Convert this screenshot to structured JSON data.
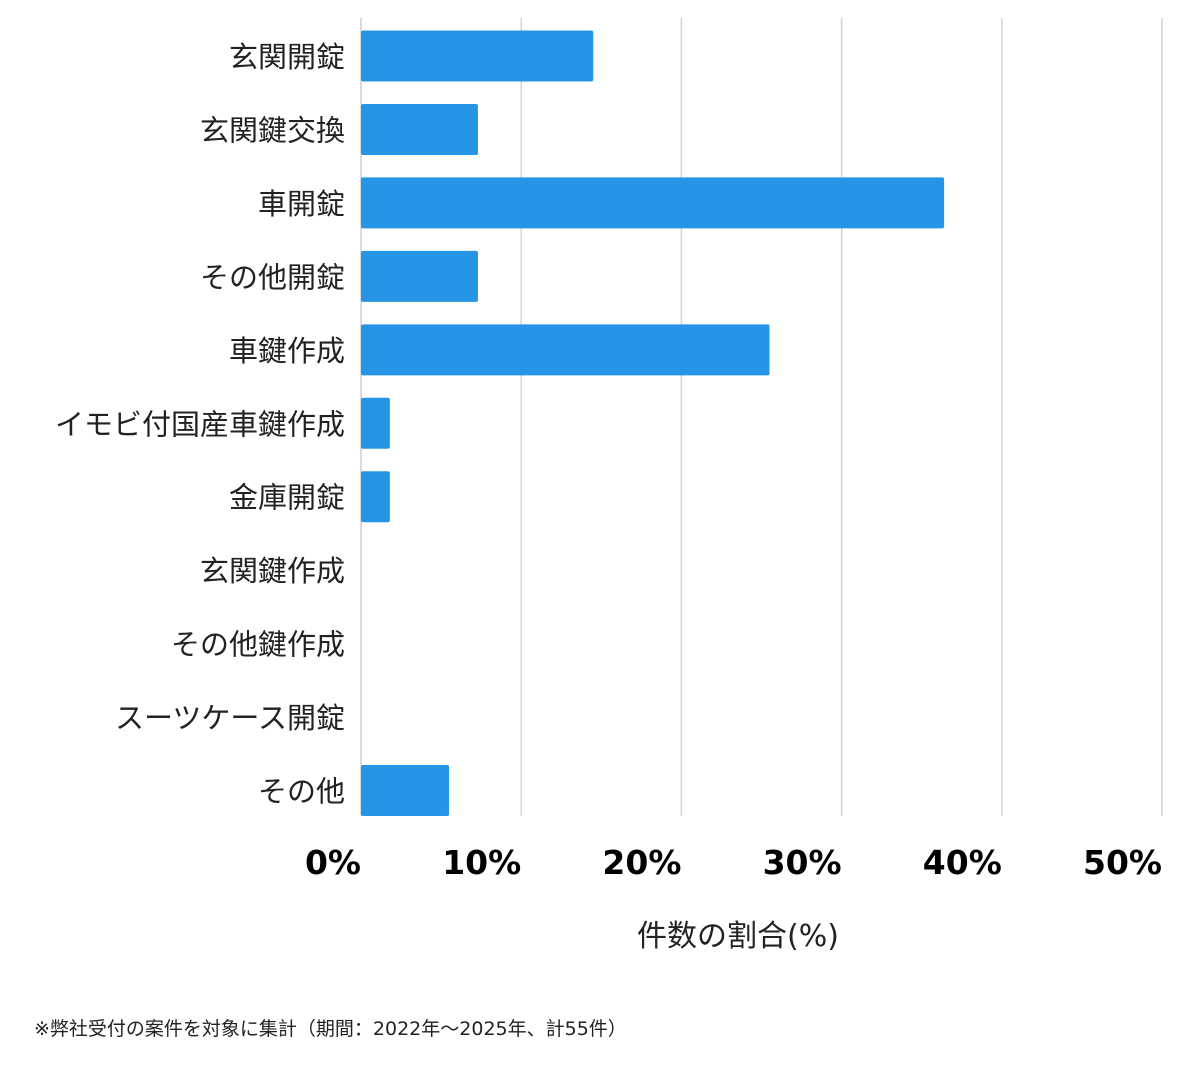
{
  "chart_data": {
    "type": "bar",
    "orientation": "horizontal",
    "categories": [
      "玄関開錠",
      "玄関鍵交換",
      "車開錠",
      "その他開錠",
      "車鍵作成",
      "イモビ付国産車鍵作成",
      "金庫開錠",
      "玄関鍵作成",
      "その他鍵作成",
      "スーツケース開錠",
      "その他"
    ],
    "values": [
      14.5,
      7.3,
      36.4,
      7.3,
      25.5,
      1.8,
      1.8,
      0,
      0,
      0,
      5.5
    ],
    "xlim": [
      0,
      50
    ],
    "xticks": [
      "0%",
      "10%",
      "20%",
      "30%",
      "40%",
      "50%"
    ],
    "xlabel": "件数の割合(%)",
    "ylabel": "",
    "grid": true,
    "bar_color": "#2795e6"
  },
  "footnote": "※弊社受付の案件を対象に集計（期間：2022年〜2025年、計55件）"
}
